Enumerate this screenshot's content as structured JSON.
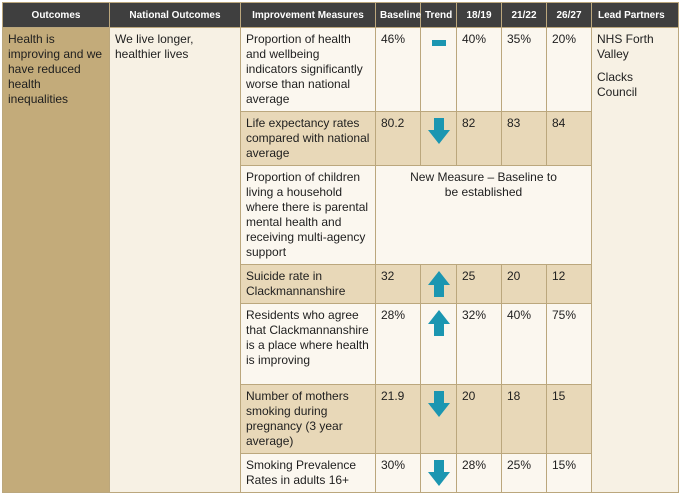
{
  "headers": {
    "outcomes": "Outcomes",
    "national": "National Outcomes",
    "improvement": "Improvement Measures",
    "baseline": "Baseline",
    "trend": "Trend",
    "y1819": "18/19",
    "y2122": "21/22",
    "y2627": "26/27",
    "lead": "Lead Partners"
  },
  "outcome": "Health is improving and we have reduced health inequalities",
  "national_outcome": "We live longer, healthier lives",
  "lead_partners": [
    "NHS Forth Valley",
    "Clacks Council"
  ],
  "new_measure_text": "New Measure – Baseline to be established",
  "colors": {
    "trend_icon": "#1b96b1",
    "header_bg": "#3f3f3f",
    "outcome_bg": "#c3ab7a"
  },
  "rows": [
    {
      "measure": "Proportion of health and wellbeing indicators significantly worse than national average",
      "baseline": "46%",
      "trend": "dash-icon",
      "y1819": "40%",
      "y2122": "35%",
      "y2627": "20%"
    },
    {
      "measure": "Life expectancy rates compared with national average",
      "baseline": "80.2",
      "trend": "down-arrow-icon",
      "y1819": "82",
      "y2122": "83",
      "y2627": "84"
    },
    {
      "measure": "Proportion of children living a household where there is parental mental health and receiving multi-agency support"
    },
    {
      "measure": "Suicide rate in Clackmannanshire",
      "baseline": "32",
      "trend": "up-arrow-icon",
      "y1819": "25",
      "y2122": "20",
      "y2627": "12"
    },
    {
      "measure": "Residents who agree that Clackmannanshire is a place where health is improving",
      "baseline": "28%",
      "trend": "up-arrow-icon",
      "y1819": "32%",
      "y2122": "40%",
      "y2627": "75%"
    },
    {
      "measure": "Number of mothers smoking during pregnancy (3 year average)",
      "baseline": "21.9",
      "trend": "down-arrow-icon",
      "y1819": "20",
      "y2122": "18",
      "y2627": "15"
    },
    {
      "measure": "Smoking Prevalence Rates in adults 16+",
      "baseline": "30%",
      "trend": "down-arrow-icon",
      "y1819": "28%",
      "y2122": "25%",
      "y2627": "15%"
    }
  ]
}
